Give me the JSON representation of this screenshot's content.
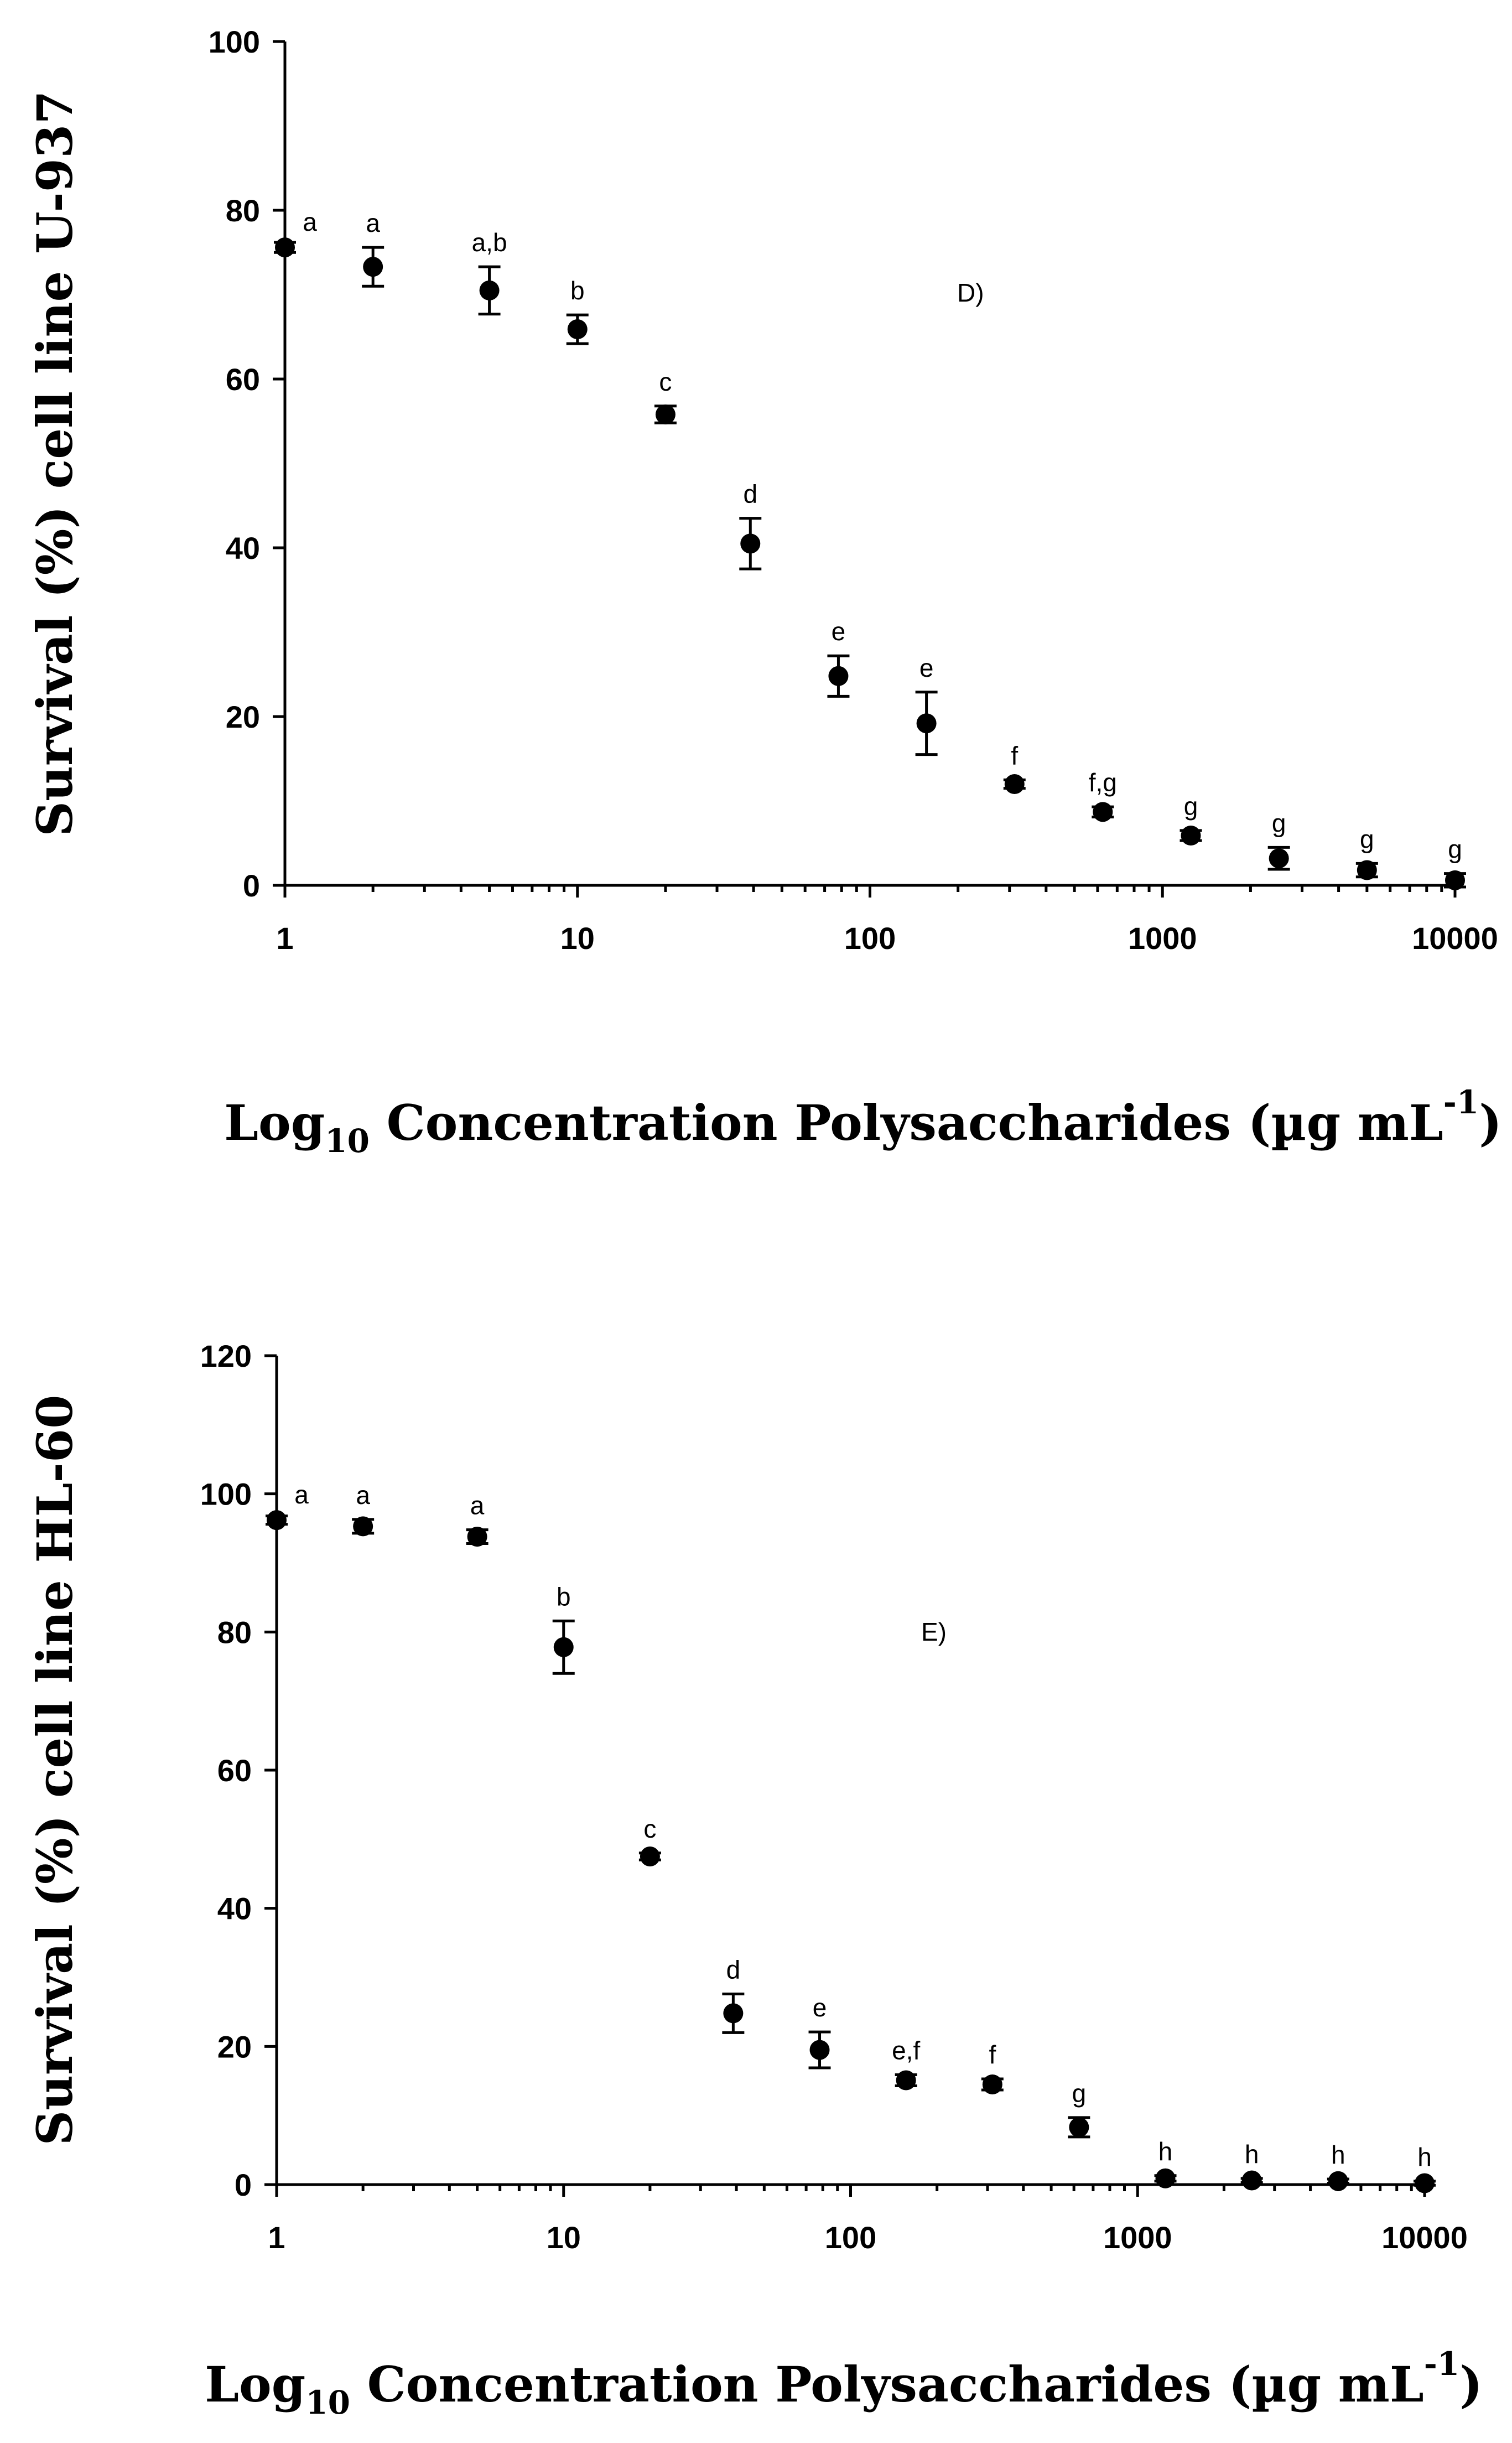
{
  "colors": {
    "ink": "#000000",
    "background": "#ffffff"
  },
  "chart_data": [
    {
      "type": "scatter",
      "panel_label": "D)",
      "xscale": "log10",
      "xlim": [
        1,
        10000
      ],
      "ylim": [
        0,
        100
      ],
      "xticks": [
        1,
        10,
        100,
        1000,
        10000
      ],
      "xtick_labels": [
        "1",
        "10",
        "100",
        "1000",
        "10000"
      ],
      "yticks": [
        0,
        20,
        40,
        60,
        80,
        100
      ],
      "ytick_labels": [
        "0",
        "20",
        "40",
        "60",
        "80",
        "100"
      ],
      "ylabel": "Survival (%) cell line U-937",
      "xlabel": {
        "prefix": "Log",
        "subscript": "10",
        "main": " Concentration Polysaccharides (µg mL",
        "superscript": "-1",
        "suffix": ")"
      },
      "series": [
        {
          "name": "U-937",
          "x": [
            1,
            2,
            5,
            10,
            20,
            39,
            78,
            156,
            312,
            625,
            1250,
            2500,
            5000,
            10000
          ],
          "y": [
            75.6,
            73.3,
            70.5,
            65.9,
            55.8,
            40.5,
            24.8,
            19.2,
            12.0,
            8.7,
            5.9,
            3.2,
            1.8,
            0.6
          ],
          "err": [
            0.6,
            2.3,
            2.8,
            1.7,
            1.0,
            3.0,
            2.4,
            3.7,
            0.5,
            0.6,
            0.6,
            1.3,
            0.8,
            0.8
          ],
          "letters": [
            "a",
            "a",
            "a,b",
            "b",
            "c",
            "d",
            "e",
            "e",
            "f",
            "f,g",
            "g",
            "g",
            "g",
            "g"
          ]
        }
      ]
    },
    {
      "type": "scatter",
      "panel_label": "E)",
      "xscale": "log10",
      "xlim": [
        1,
        10000
      ],
      "ylim": [
        0,
        120
      ],
      "xticks": [
        1,
        10,
        100,
        1000,
        10000
      ],
      "xtick_labels": [
        "1",
        "10",
        "100",
        "1000",
        "10000"
      ],
      "yticks": [
        0,
        20,
        40,
        60,
        80,
        100,
        120
      ],
      "ytick_labels": [
        "0",
        "20",
        "40",
        "60",
        "80",
        "100",
        "120"
      ],
      "ylabel": "Survival (%) cell line HL-60",
      "xlabel": {
        "prefix": "Log",
        "subscript": "10",
        "main": " Concentration Polysaccharides (µg mL",
        "superscript": "-1",
        "suffix": ")"
      },
      "series": [
        {
          "name": "HL-60",
          "x": [
            1,
            2,
            5,
            10,
            20,
            39,
            78,
            156,
            312,
            625,
            1250,
            2500,
            5000,
            10000
          ],
          "y": [
            96.2,
            95.3,
            93.8,
            77.8,
            47.5,
            24.8,
            19.5,
            15.1,
            14.5,
            8.3,
            0.9,
            0.6,
            0.5,
            0.2
          ],
          "err": [
            0.6,
            1.0,
            1.0,
            3.8,
            0.5,
            2.8,
            2.6,
            0.8,
            0.8,
            1.4,
            0.4,
            0.3,
            0.3,
            0.3
          ],
          "letters": [
            "a",
            "a",
            "a",
            "b",
            "c",
            "d",
            "e",
            "e,f",
            "f",
            "g",
            "h",
            "h",
            "h",
            "h"
          ]
        }
      ]
    }
  ]
}
